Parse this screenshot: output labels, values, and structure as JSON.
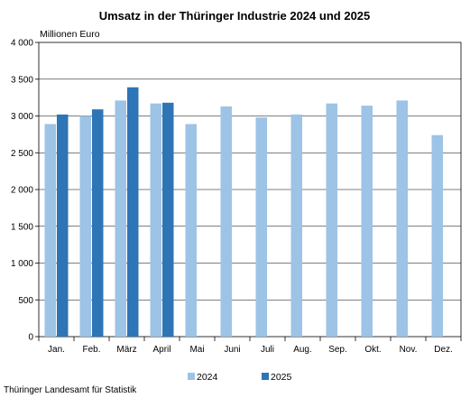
{
  "chart_data": {
    "type": "bar",
    "title": "Umsatz in der Thüringer Industrie 2024 und 2025",
    "ylabel": "Millionen Euro",
    "xlabel": "",
    "ylim": [
      0,
      4000
    ],
    "yticks": [
      0,
      500,
      1000,
      1500,
      2000,
      2500,
      3000,
      3500,
      4000
    ],
    "ytick_labels": [
      "0",
      "500",
      "1 000",
      "1 500",
      "2 000",
      "2 500",
      "3 000",
      "3 500",
      "4 000"
    ],
    "categories": [
      "Jan.",
      "Feb.",
      "März",
      "April",
      "Mai",
      "Juni",
      "Juli",
      "Aug.",
      "Sep.",
      "Okt.",
      "Nov.",
      "Dez."
    ],
    "series": [
      {
        "name": "2024",
        "color": "#9dc3e6",
        "values": [
          2890,
          3000,
          3210,
          3170,
          2890,
          3130,
          2980,
          3020,
          3170,
          3140,
          3210,
          2740
        ]
      },
      {
        "name": "2025",
        "color": "#2e75b6",
        "values": [
          3020,
          3090,
          3390,
          3180,
          null,
          null,
          null,
          null,
          null,
          null,
          null,
          null
        ]
      }
    ],
    "grid": "horizontal",
    "legend": "bottom-center"
  },
  "source": "Thüringer Landesamt für Statistik"
}
